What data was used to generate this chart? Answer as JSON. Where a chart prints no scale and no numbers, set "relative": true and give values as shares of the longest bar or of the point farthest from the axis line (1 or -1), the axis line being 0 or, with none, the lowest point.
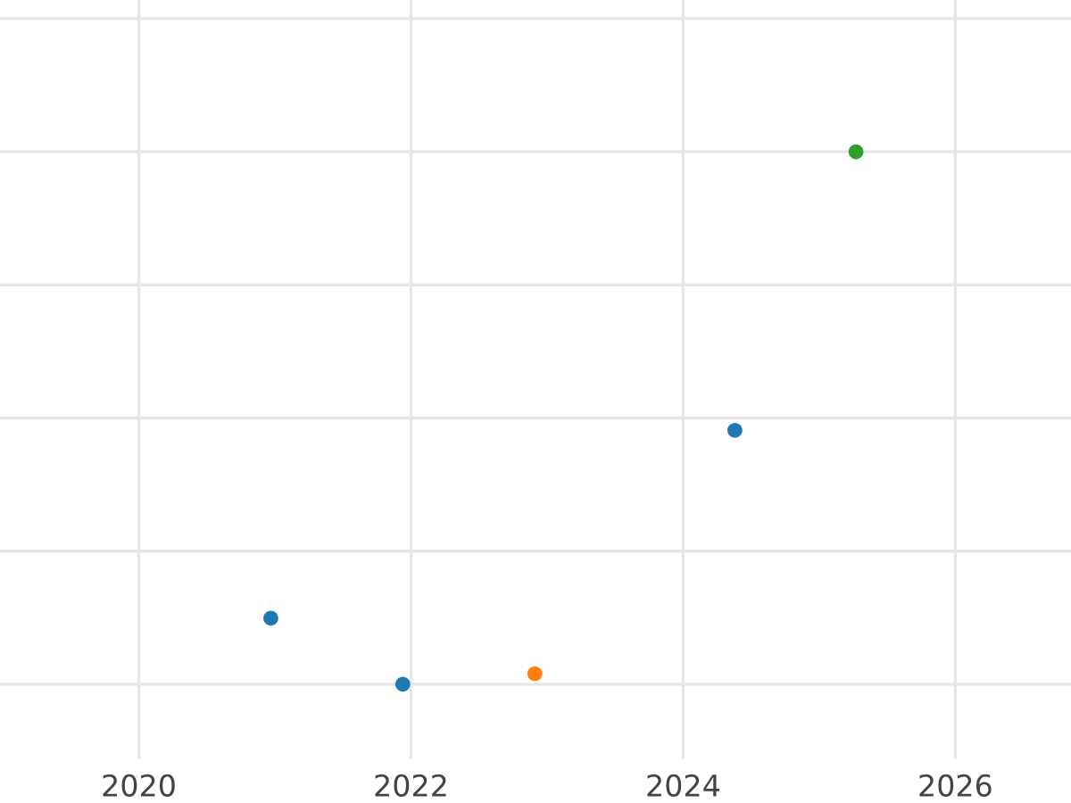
{
  "chart_data": {
    "type": "scatter",
    "relative": true,
    "x": [
      2020.97,
      2021.94,
      2022.91,
      2024.38,
      2025.27
    ],
    "values": [
      0.124,
      0,
      0.02,
      0.477,
      1
    ],
    "colors": [
      "#1f77b4",
      "#1f77b4",
      "#ff7f0e",
      "#1f77b4",
      "#2ca02c"
    ],
    "xlim": [
      2018.98,
      2026.85
    ],
    "xticks": [
      2020,
      2022,
      2024,
      2026
    ],
    "grid": true,
    "tick_labels": "x",
    "marker": "circle"
  }
}
